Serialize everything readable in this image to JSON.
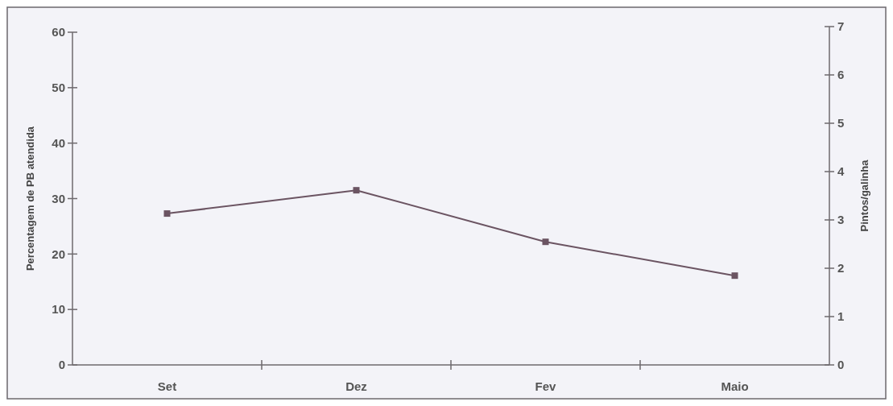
{
  "chart_data": {
    "type": "line",
    "ylabel": "Percentagem de PB atendida",
    "y2label": "Pintos/galinha",
    "categories": [
      "Set",
      "Dez",
      "Fev",
      "Maio"
    ],
    "series": [
      {
        "color": "#6b5462",
        "values": [
          27.3,
          31.5,
          22.2,
          16.1
        ]
      }
    ],
    "ylim": [
      0,
      60
    ],
    "yticks": [
      0,
      10,
      20,
      30,
      40,
      50,
      60
    ],
    "y2lim": [
      0,
      7
    ],
    "y2ticks": [
      0,
      1,
      2,
      3,
      4,
      5,
      6,
      7
    ],
    "marker": "square",
    "line_style": "solid",
    "grid": false
  }
}
